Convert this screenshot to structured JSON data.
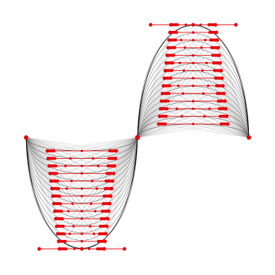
{
  "figure": {
    "type": "bezier-construction-figure",
    "background_color": "#ffffff",
    "curve_color": "#000000",
    "construction_line_color": "#808080",
    "control_point_color": "#e8000b",
    "control_polygon_color": "#e8000b",
    "upper_arch_levels": 14,
    "lower_arch_levels": 14
  }
}
